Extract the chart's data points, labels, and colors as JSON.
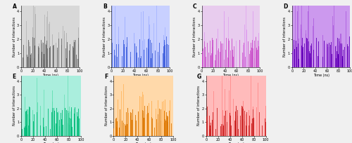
{
  "panels": [
    {
      "label": "A",
      "color_main": "#696969",
      "color_light": "#aaaaaa",
      "bg": "#d8d8d8"
    },
    {
      "label": "B",
      "color_main": "#4060dd",
      "color_light": "#99aaff",
      "bg": "#c8d0ff"
    },
    {
      "label": "C",
      "color_main": "#cc55cc",
      "color_light": "#dd99ee",
      "bg": "#e8ccee"
    },
    {
      "label": "D",
      "color_main": "#6600bb",
      "color_light": "#aa55dd",
      "bg": "#cc99ee"
    },
    {
      "label": "E",
      "color_main": "#00bb77",
      "color_light": "#55ddaa",
      "bg": "#aaeedd"
    },
    {
      "label": "F",
      "color_main": "#dd7700",
      "color_light": "#ffaa44",
      "bg": "#ffd9aa"
    },
    {
      "label": "G",
      "color_main": "#cc2222",
      "color_light": "#ff7777",
      "bg": "#ffbbbb"
    }
  ],
  "n_bars": 500,
  "x_max": 100,
  "ylim": [
    0,
    4
  ],
  "yticks": [
    0,
    1,
    2,
    3,
    4
  ],
  "xticks": [
    0,
    20,
    40,
    60,
    80,
    100
  ],
  "xlabel": "Time (ns)",
  "ylabel": "Number of interactions",
  "tick_fontsize": 3.5,
  "label_fontsize": 3.5,
  "panel_label_fontsize": 5.5,
  "background_color": "#f0f0f0"
}
